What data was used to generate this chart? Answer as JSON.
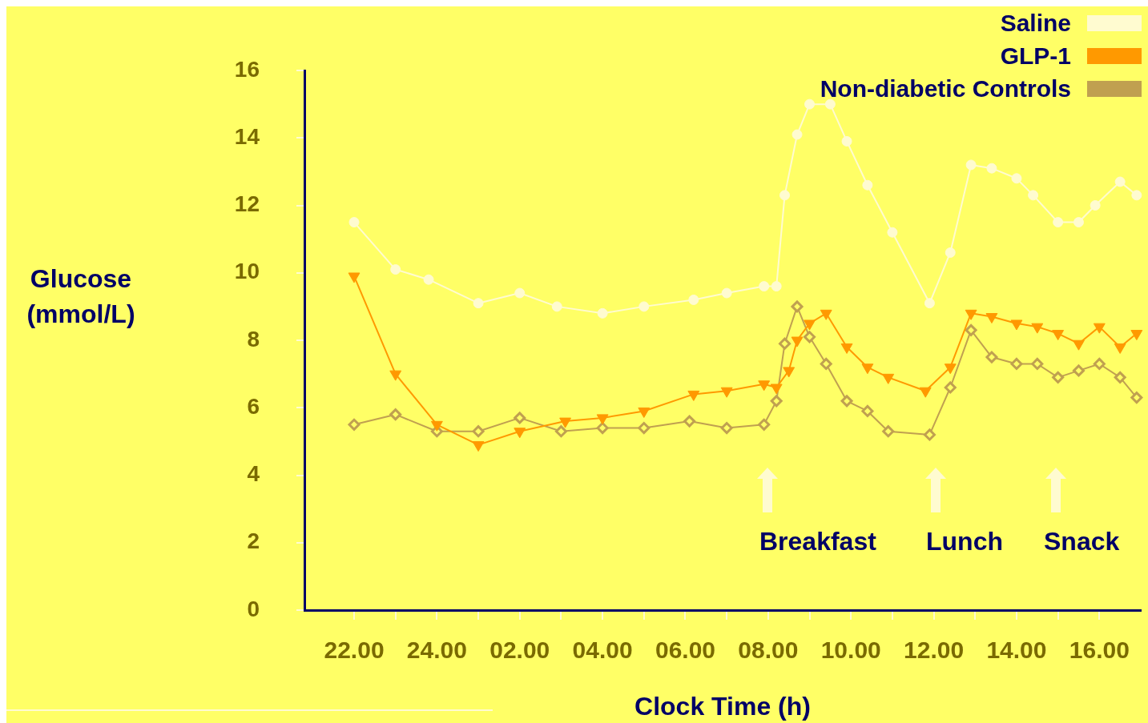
{
  "chart_data": {
    "type": "line",
    "xlabel": "Clock Time (h)",
    "ylabel": "Glucose (mmol/L)",
    "legend": "top right",
    "grid": false,
    "xlim": [
      "2000-01-01T20:48",
      "2000-01-02T17:00"
    ],
    "ylim": [
      0,
      16
    ],
    "yticks": [
      0,
      2,
      4,
      6,
      8,
      10,
      12,
      14,
      16
    ],
    "xticks": [
      {
        "value": "2000-01-01T22:00",
        "label": "22.00"
      },
      {
        "value": "2000-01-01T23:00",
        "label": null
      },
      {
        "value": "2000-01-02T00:00",
        "label": "24.00"
      },
      {
        "value": "2000-01-02T01:00",
        "label": null
      },
      {
        "value": "2000-01-02T02:00",
        "label": "02.00"
      },
      {
        "value": "2000-01-02T03:00",
        "label": null
      },
      {
        "value": "2000-01-02T04:00",
        "label": "04.00"
      },
      {
        "value": "2000-01-02T05:00",
        "label": null
      },
      {
        "value": "2000-01-02T06:00",
        "label": "06.00"
      },
      {
        "value": "2000-01-02T07:00",
        "label": null
      },
      {
        "value": "2000-01-02T08:00",
        "label": "08.00"
      },
      {
        "value": "2000-01-02T09:00",
        "label": null
      },
      {
        "value": "2000-01-02T10:00",
        "label": "10.00"
      },
      {
        "value": "2000-01-02T11:00",
        "label": null
      },
      {
        "value": "2000-01-02T12:00",
        "label": "12.00"
      },
      {
        "value": "2000-01-02T13:00",
        "label": null
      },
      {
        "value": "2000-01-02T14:00",
        "label": "14.00"
      },
      {
        "value": "2000-01-02T15:00",
        "label": null
      },
      {
        "value": "2000-01-02T16:00",
        "label": "16.00"
      }
    ],
    "series": [
      {
        "name": "Saline",
        "color": "#fffbd0",
        "marker": "circle",
        "x": [
          "2000-01-01T22:00",
          "2000-01-01T23:00",
          "2000-01-01T23:48",
          "2000-01-02T01:00",
          "2000-01-02T02:00",
          "2000-01-02T02:54",
          "2000-01-02T04:00",
          "2000-01-02T05:00",
          "2000-01-02T06:12",
          "2000-01-02T07:00",
          "2000-01-02T07:54",
          "2000-01-02T08:12",
          "2000-01-02T08:24",
          "2000-01-02T08:42",
          "2000-01-02T09:00",
          "2000-01-02T09:30",
          "2000-01-02T09:54",
          "2000-01-02T10:24",
          "2000-01-02T11:00",
          "2000-01-02T11:54",
          "2000-01-02T12:24",
          "2000-01-02T12:54",
          "2000-01-02T13:24",
          "2000-01-02T14:00",
          "2000-01-02T14:24",
          "2000-01-02T15:00",
          "2000-01-02T15:30",
          "2000-01-02T15:54",
          "2000-01-02T16:30",
          "2000-01-02T16:54"
        ],
        "values": [
          11.5,
          10.1,
          9.8,
          9.1,
          9.4,
          9.0,
          8.8,
          9.0,
          9.2,
          9.4,
          9.6,
          9.6,
          12.3,
          14.1,
          15.0,
          15.0,
          13.9,
          12.6,
          11.2,
          9.1,
          10.6,
          13.2,
          13.1,
          12.8,
          12.3,
          11.5,
          11.5,
          12.0,
          12.7,
          12.3
        ]
      },
      {
        "name": "GLP-1",
        "color": "#ff9900",
        "marker": "triangle",
        "x": [
          "2000-01-01T22:00",
          "2000-01-01T23:00",
          "2000-01-02T00:00",
          "2000-01-02T01:00",
          "2000-01-02T02:00",
          "2000-01-02T03:06",
          "2000-01-02T04:00",
          "2000-01-02T05:00",
          "2000-01-02T06:12",
          "2000-01-02T07:00",
          "2000-01-02T07:54",
          "2000-01-02T08:12",
          "2000-01-02T08:30",
          "2000-01-02T08:42",
          "2000-01-02T09:00",
          "2000-01-02T09:24",
          "2000-01-02T09:54",
          "2000-01-02T10:24",
          "2000-01-02T10:54",
          "2000-01-02T11:48",
          "2000-01-02T12:24",
          "2000-01-02T12:54",
          "2000-01-02T13:24",
          "2000-01-02T14:00",
          "2000-01-02T14:30",
          "2000-01-02T15:00",
          "2000-01-02T15:30",
          "2000-01-02T16:00",
          "2000-01-02T16:30",
          "2000-01-02T16:54"
        ],
        "values": [
          9.9,
          7.0,
          5.5,
          4.9,
          5.3,
          5.6,
          5.7,
          5.9,
          6.4,
          6.5,
          6.7,
          6.6,
          7.1,
          8.0,
          8.5,
          8.8,
          7.8,
          7.2,
          6.9,
          6.5,
          7.2,
          8.8,
          8.7,
          8.5,
          8.4,
          8.2,
          7.9,
          8.4,
          7.8,
          8.2
        ]
      },
      {
        "name": "Non-diabetic Controls",
        "color": "#c0a050",
        "marker": "diamond",
        "x": [
          "2000-01-01T22:00",
          "2000-01-01T23:00",
          "2000-01-02T00:00",
          "2000-01-02T01:00",
          "2000-01-02T02:00",
          "2000-01-02T03:00",
          "2000-01-02T04:00",
          "2000-01-02T05:00",
          "2000-01-02T06:06",
          "2000-01-02T07:00",
          "2000-01-02T07:54",
          "2000-01-02T08:12",
          "2000-01-02T08:24",
          "2000-01-02T08:42",
          "2000-01-02T09:00",
          "2000-01-02T09:24",
          "2000-01-02T09:54",
          "2000-01-02T10:24",
          "2000-01-02T10:54",
          "2000-01-02T11:54",
          "2000-01-02T12:24",
          "2000-01-02T12:54",
          "2000-01-02T13:24",
          "2000-01-02T14:00",
          "2000-01-02T14:30",
          "2000-01-02T15:00",
          "2000-01-02T15:30",
          "2000-01-02T16:00",
          "2000-01-02T16:30",
          "2000-01-02T16:54"
        ],
        "values": [
          5.5,
          5.8,
          5.3,
          5.3,
          5.7,
          5.3,
          5.4,
          5.4,
          5.6,
          5.4,
          5.5,
          6.2,
          7.9,
          9.0,
          8.1,
          7.3,
          6.2,
          5.9,
          5.3,
          5.2,
          6.6,
          8.3,
          7.5,
          7.3,
          7.3,
          6.9,
          7.1,
          7.3,
          6.9,
          6.3
        ]
      }
    ],
    "annotations": [
      "Breakfast",
      "Lunch",
      "Snack"
    ]
  }
}
